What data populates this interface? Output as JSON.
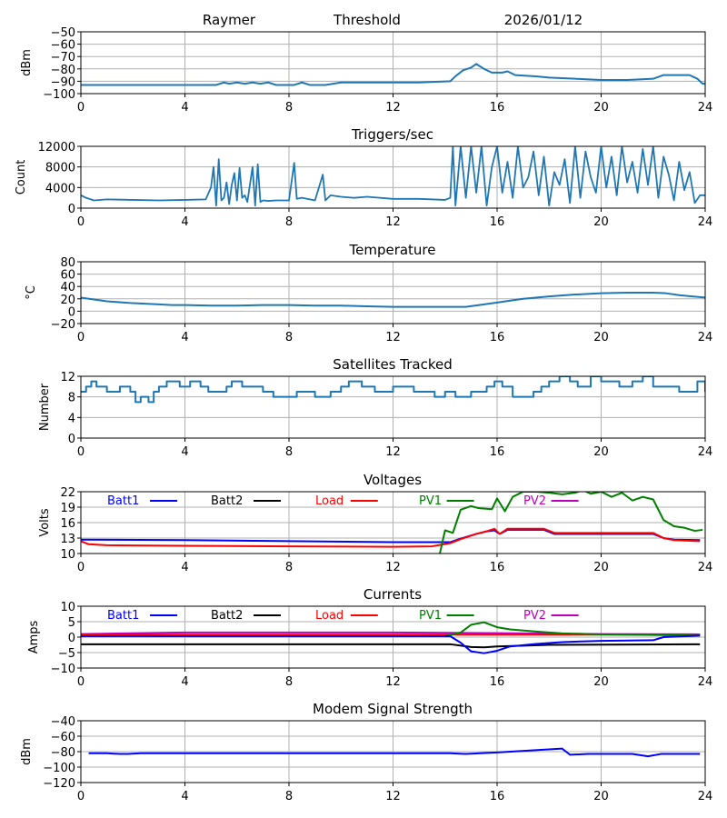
{
  "header": {
    "site": "Raymer",
    "mode": "Threshold",
    "date": "2026/01/12"
  },
  "colors": {
    "default": "#1f77b4",
    "Batt1": "#0000ff",
    "Batt2": "#000000",
    "Load": "#ff0000",
    "PV1": "#008000",
    "PV2": "#bf00bf",
    "grid": "#b0b0b0"
  },
  "chart_data": [
    {
      "id": "rssi",
      "type": "line",
      "title": "",
      "ylabel": "dBm",
      "xlim": [
        0,
        24
      ],
      "ylim": [
        -100,
        -50
      ],
      "xticks": [
        0,
        4,
        8,
        12,
        16,
        20,
        24
      ],
      "yticks": [
        -100,
        -90,
        -80,
        -70,
        -60,
        -50
      ],
      "ytick_labels": [
        "−100",
        "−90",
        "−80",
        "−70",
        "−60",
        "−50"
      ],
      "grid": true,
      "series": [
        {
          "name": "Threshold",
          "color_key": "default",
          "x": [
            0,
            5.2,
            5.5,
            5.7,
            6.0,
            6.3,
            6.6,
            6.9,
            7.2,
            7.5,
            8.2,
            8.5,
            8.8,
            9.4,
            10,
            11,
            12,
            13,
            14.2,
            14.4,
            14.7,
            15.0,
            15.2,
            15.5,
            15.8,
            16.2,
            16.4,
            16.7,
            17.5,
            18,
            19,
            20,
            21,
            22,
            22.4,
            23,
            23.4,
            23.7,
            23.9,
            24
          ],
          "y": [
            -93,
            -93,
            -91,
            -92,
            -91,
            -92,
            -91,
            -92,
            -91,
            -93,
            -93,
            -91,
            -93,
            -93,
            -91,
            -91,
            -91,
            -91,
            -90,
            -86,
            -81,
            -79,
            -76,
            -80,
            -83,
            -83,
            -82,
            -85,
            -86,
            -87,
            -88,
            -89,
            -89,
            -88,
            -85,
            -85,
            -85,
            -88,
            -92,
            -92
          ]
        }
      ]
    },
    {
      "id": "triggers",
      "type": "line",
      "title": "Triggers/sec",
      "ylabel": "Count",
      "xlim": [
        0,
        24
      ],
      "ylim": [
        0,
        12000
      ],
      "xticks": [
        0,
        4,
        8,
        12,
        16,
        20,
        24
      ],
      "yticks": [
        0,
        4000,
        8000,
        12000
      ],
      "ytick_labels": [
        "0",
        "4000",
        "8000",
        "12000"
      ],
      "grid": true,
      "series": [
        {
          "name": "Triggers",
          "color_key": "default",
          "x": [
            0,
            0.2,
            0.5,
            1,
            2,
            3,
            4,
            4.8,
            5.0,
            5.1,
            5.2,
            5.3,
            5.4,
            5.5,
            5.6,
            5.7,
            5.8,
            5.9,
            6.0,
            6.1,
            6.2,
            6.3,
            6.4,
            6.6,
            6.7,
            6.8,
            6.9,
            7.0,
            7.2,
            7.5,
            8.0,
            8.2,
            8.3,
            8.5,
            9.0,
            9.3,
            9.4,
            9.6,
            10,
            10.5,
            11,
            12,
            13,
            14,
            14.2,
            14.3,
            14.4,
            14.6,
            14.8,
            15.0,
            15.2,
            15.4,
            15.6,
            15.8,
            16.0,
            16.2,
            16.4,
            16.6,
            16.8,
            17.0,
            17.2,
            17.4,
            17.6,
            17.8,
            18.0,
            18.2,
            18.4,
            18.6,
            18.8,
            19.0,
            19.2,
            19.4,
            19.6,
            19.8,
            20.0,
            20.2,
            20.4,
            20.6,
            20.8,
            21.0,
            21.2,
            21.4,
            21.6,
            21.8,
            22.0,
            22.2,
            22.4,
            22.6,
            22.8,
            23.0,
            23.2,
            23.4,
            23.6,
            23.8,
            24
          ],
          "y": [
            2500,
            2000,
            1500,
            1700,
            1600,
            1500,
            1600,
            1700,
            4000,
            8000,
            500,
            9500,
            1500,
            2000,
            5000,
            800,
            4500,
            6800,
            1500,
            7800,
            2000,
            2500,
            1200,
            8000,
            500,
            8500,
            1200,
            1500,
            1400,
            1500,
            1500,
            8800,
            1800,
            2000,
            1500,
            6500,
            1500,
            2500,
            2200,
            2000,
            2200,
            1800,
            1800,
            1600,
            2000,
            12000,
            500,
            12000,
            2000,
            12000,
            3000,
            12000,
            500,
            8000,
            12000,
            3000,
            9000,
            2000,
            12000,
            4000,
            6000,
            11000,
            2500,
            10000,
            500,
            7000,
            4500,
            9500,
            1000,
            12000,
            2000,
            11000,
            6000,
            3000,
            12000,
            4000,
            10000,
            2500,
            12000,
            5000,
            9000,
            3000,
            11500,
            4500,
            12000,
            2000,
            10000,
            6500,
            1500,
            9000,
            3500,
            7000,
            1000,
            2500,
            2500
          ]
        }
      ]
    },
    {
      "id": "temperature",
      "type": "line",
      "title": "Temperature",
      "ylabel": "°C",
      "xlim": [
        0,
        24
      ],
      "ylim": [
        -20,
        80
      ],
      "xticks": [
        0,
        4,
        8,
        12,
        16,
        20,
        24
      ],
      "yticks": [
        -20,
        0,
        20,
        40,
        60,
        80
      ],
      "ytick_labels": [
        "−20",
        "0",
        "20",
        "40",
        "60",
        "80"
      ],
      "grid": true,
      "series": [
        {
          "name": "Temperature",
          "color_key": "default",
          "x": [
            0,
            0.5,
            1,
            2,
            3,
            3.5,
            4,
            5,
            6,
            7,
            8,
            9,
            10,
            11,
            12,
            13,
            14,
            14.8,
            15.5,
            16,
            17,
            18,
            19,
            20,
            21,
            22,
            22.5,
            23,
            24
          ],
          "y": [
            22,
            19,
            16,
            13,
            11,
            10,
            10,
            9,
            9,
            10,
            10,
            9,
            9,
            8,
            7,
            7,
            7,
            7,
            11,
            14,
            20,
            24,
            27,
            29,
            30,
            30,
            29,
            26,
            22
          ]
        }
      ]
    },
    {
      "id": "satellites",
      "type": "line",
      "title": "Satellites Tracked",
      "ylabel": "Number",
      "xlim": [
        0,
        24
      ],
      "ylim": [
        0,
        12
      ],
      "xticks": [
        0,
        4,
        8,
        12,
        16,
        20,
        24
      ],
      "yticks": [
        0,
        4,
        8,
        12
      ],
      "ytick_labels": [
        "0",
        "4",
        "8",
        "12"
      ],
      "grid": true,
      "step": true,
      "series": [
        {
          "name": "Satellites",
          "color_key": "default",
          "x": [
            0,
            0.2,
            0.4,
            0.6,
            1.0,
            1.5,
            1.9,
            2.1,
            2.3,
            2.6,
            2.8,
            3.0,
            3.3,
            3.8,
            4.2,
            4.6,
            4.9,
            5.3,
            5.6,
            5.8,
            6.2,
            6.8,
            7.0,
            7.4,
            8.0,
            8.3,
            9.0,
            9.6,
            10.0,
            10.3,
            10.8,
            11.3,
            11.6,
            12.0,
            12.2,
            12.8,
            13.2,
            13.6,
            14.0,
            14.4,
            14.6,
            15.0,
            15.6,
            15.9,
            16.2,
            16.6,
            16.9,
            17.4,
            17.7,
            18.0,
            18.4,
            18.8,
            19.1,
            19.6,
            20.0,
            20.3,
            20.7,
            21.2,
            21.6,
            22.0,
            22.5,
            23.0,
            23.4,
            23.7,
            24.0
          ],
          "y": [
            9,
            10,
            11,
            10,
            9,
            10,
            9,
            7,
            8,
            7,
            9,
            10,
            11,
            10,
            11,
            10,
            9,
            9,
            10,
            11,
            10,
            10,
            9,
            8,
            8,
            9,
            8,
            9,
            10,
            11,
            10,
            9,
            9,
            10,
            10,
            9,
            9,
            8,
            9,
            8,
            8,
            9,
            10,
            11,
            10,
            8,
            8,
            9,
            10,
            11,
            12,
            11,
            10,
            12,
            11,
            11,
            10,
            11,
            12,
            10,
            10,
            9,
            9,
            11,
            9
          ]
        }
      ]
    },
    {
      "id": "voltages",
      "type": "line",
      "title": "Voltages",
      "ylabel": "Volts",
      "xlim": [
        0,
        24
      ],
      "ylim": [
        10,
        22
      ],
      "xticks": [
        0,
        4,
        8,
        12,
        16,
        20,
        24
      ],
      "yticks": [
        10,
        13,
        16,
        19,
        22
      ],
      "ytick_labels": [
        "10",
        "13",
        "16",
        "19",
        "22"
      ],
      "grid": true,
      "legend": [
        "Batt1",
        "Batt2",
        "Load",
        "PV1",
        "PV2"
      ],
      "series": [
        {
          "name": "Batt1",
          "color_key": "Batt1",
          "x": [
            0,
            4,
            8,
            12,
            14.2,
            14.6,
            15.2,
            15.6,
            15.9,
            16.1,
            16.4,
            17.0,
            17.8,
            18.2,
            19,
            20,
            21,
            22,
            22.4,
            22.8,
            23.8
          ],
          "y": [
            12.7,
            12.6,
            12.4,
            12.2,
            12.2,
            12.9,
            13.8,
            14.3,
            14.5,
            13.8,
            14.6,
            14.6,
            14.6,
            13.8,
            13.8,
            13.8,
            13.8,
            13.8,
            13.0,
            12.7,
            12.6
          ]
        },
        {
          "name": "Batt2",
          "color_key": "Batt2",
          "x": [],
          "y": []
        },
        {
          "name": "Load",
          "color_key": "Load",
          "x": [
            0,
            0.3,
            1,
            4,
            8,
            12,
            13.5,
            14.2,
            14.6,
            15.2,
            15.6,
            15.9,
            16.1,
            16.4,
            17.0,
            17.8,
            18.2,
            19,
            20,
            21,
            22,
            22.4,
            22.8,
            23.8
          ],
          "y": [
            12.4,
            11.8,
            11.6,
            11.5,
            11.4,
            11.3,
            11.4,
            12.0,
            12.8,
            13.8,
            14.3,
            14.8,
            13.8,
            14.8,
            14.8,
            14.8,
            14.0,
            14.0,
            14.0,
            14.0,
            14.0,
            13.0,
            12.6,
            12.4
          ]
        },
        {
          "name": "PV1",
          "color_key": "PV1",
          "x": [
            13.8,
            14.0,
            14.3,
            14.6,
            15.0,
            15.3,
            15.8,
            16.0,
            16.3,
            16.6,
            17.0,
            17.5,
            18.0,
            18.5,
            19.0,
            19.3,
            19.6,
            20.0,
            20.4,
            20.8,
            21.2,
            21.6,
            22.0,
            22.4,
            22.8,
            23.2,
            23.6,
            23.9
          ],
          "y": [
            10,
            14.5,
            14.0,
            18.5,
            19.2,
            18.8,
            18.6,
            20.7,
            18.2,
            21.0,
            22.0,
            22.0,
            21.8,
            21.5,
            21.8,
            22.3,
            21.6,
            22.0,
            21.0,
            21.8,
            20.3,
            21.0,
            20.5,
            16.5,
            15.3,
            15.0,
            14.4,
            14.6
          ]
        },
        {
          "name": "PV2",
          "color_key": "PV2",
          "x": [],
          "y": []
        }
      ]
    },
    {
      "id": "currents",
      "type": "line",
      "title": "Currents",
      "ylabel": "Amps",
      "xlim": [
        0,
        24
      ],
      "ylim": [
        -10,
        10
      ],
      "xticks": [
        0,
        4,
        8,
        12,
        16,
        20,
        24
      ],
      "yticks": [
        -10,
        -5,
        0,
        5,
        10
      ],
      "ytick_labels": [
        "−10",
        "−5",
        "0",
        "5",
        "10"
      ],
      "grid": true,
      "legend": [
        "Batt1",
        "Batt2",
        "Load",
        "PV1",
        "PV2"
      ],
      "series": [
        {
          "name": "PV2",
          "color_key": "PV2",
          "x": [
            0,
            4,
            8,
            12,
            16,
            20,
            23.8
          ],
          "y": [
            1.0,
            1.5,
            1.5,
            1.5,
            1.3,
            1.0,
            0.9
          ]
        },
        {
          "name": "Load",
          "color_key": "Load",
          "x": [
            0,
            4,
            8,
            12,
            16,
            20,
            23.8
          ],
          "y": [
            0.8,
            0.8,
            0.8,
            0.8,
            0.8,
            0.8,
            0.8
          ]
        },
        {
          "name": "PV1",
          "color_key": "PV1",
          "x": [
            0,
            14.0,
            14.6,
            15.0,
            15.5,
            16.0,
            16.5,
            17.5,
            18.5,
            20,
            22,
            23.8
          ],
          "y": [
            0.3,
            0.3,
            1.5,
            4.0,
            4.8,
            3.2,
            2.5,
            1.8,
            1.2,
            0.9,
            0.7,
            0.5
          ]
        },
        {
          "name": "Batt2",
          "color_key": "Batt2",
          "x": [
            0,
            4,
            8,
            12,
            14.2,
            15.0,
            15.5,
            16.0,
            18,
            23.8
          ],
          "y": [
            -2.3,
            -2.3,
            -2.3,
            -2.3,
            -2.3,
            -3.2,
            -3.3,
            -3.0,
            -2.5,
            -2.3
          ]
        },
        {
          "name": "Batt1",
          "color_key": "Batt1",
          "x": [
            0,
            14.2,
            14.6,
            15.0,
            15.5,
            16.0,
            16.5,
            17.5,
            18.5,
            20,
            22,
            22.4,
            23.8
          ],
          "y": [
            0.3,
            0.3,
            -1.8,
            -4.6,
            -5.2,
            -4.4,
            -3.0,
            -2.2,
            -1.6,
            -1.2,
            -1.0,
            0.0,
            0.5
          ]
        }
      ]
    },
    {
      "id": "modem",
      "type": "line",
      "title": "Modem Signal Strength",
      "ylabel": "dBm",
      "xlim": [
        0,
        24
      ],
      "ylim": [
        -120,
        -40
      ],
      "xticks": [
        0,
        4,
        8,
        12,
        16,
        20,
        24
      ],
      "yticks": [
        -120,
        -100,
        -80,
        -60,
        -40
      ],
      "ytick_labels": [
        "−120",
        "−100",
        "−80",
        "−60",
        "−40"
      ],
      "grid": true,
      "series": [
        {
          "name": "Modem",
          "color_key": "Batt1",
          "x": [
            0.3,
            1.0,
            1.5,
            1.8,
            2.3,
            4,
            8,
            12,
            14.2,
            14.8,
            16,
            18.5,
            18.8,
            19.5,
            21.2,
            21.8,
            22.3,
            23.8
          ],
          "y": [
            -82,
            -82,
            -83,
            -83,
            -82,
            -82,
            -82,
            -82,
            -82,
            -83,
            -81,
            -76,
            -84,
            -83,
            -83,
            -86,
            -83,
            -83
          ]
        }
      ]
    }
  ]
}
